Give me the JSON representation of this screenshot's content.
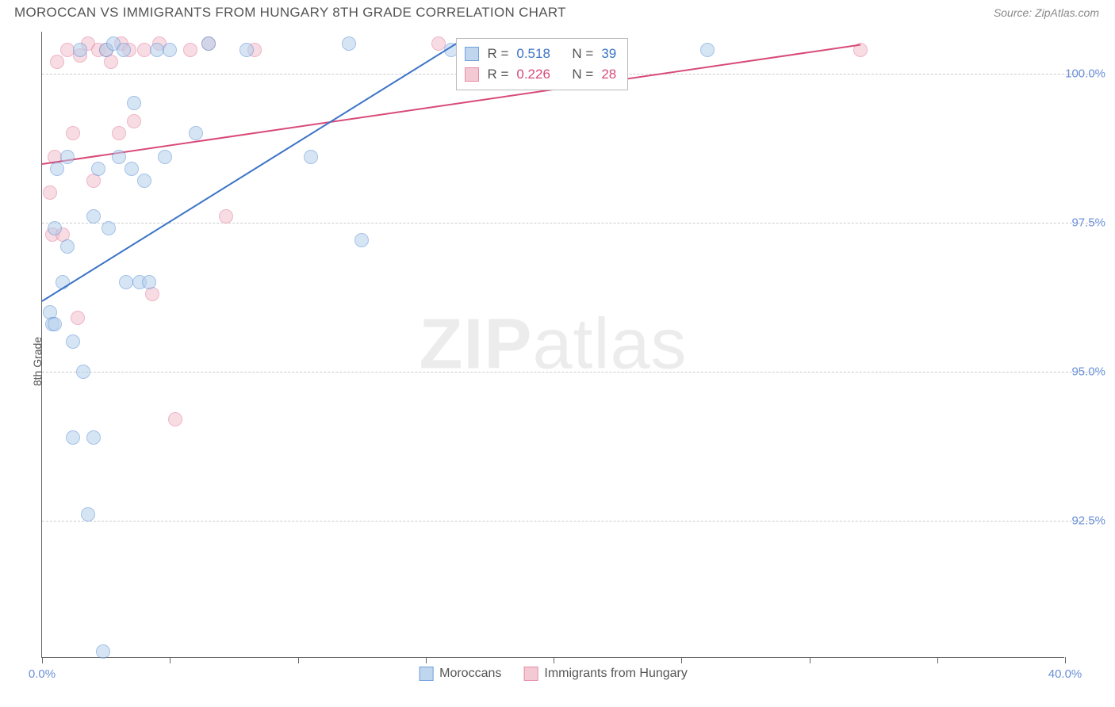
{
  "header": {
    "title": "MOROCCAN VS IMMIGRANTS FROM HUNGARY 8TH GRADE CORRELATION CHART",
    "source": "Source: ZipAtlas.com"
  },
  "axes": {
    "y_label": "8th Grade",
    "x_min": 0.0,
    "x_max": 40.0,
    "y_min": 90.2,
    "y_max": 100.7,
    "y_ticks": [
      92.5,
      95.0,
      97.5,
      100.0
    ],
    "y_tick_labels": [
      "92.5%",
      "95.0%",
      "97.5%",
      "100.0%"
    ],
    "x_ticks": [
      0.0,
      10.0,
      20.0,
      30.0,
      40.0
    ],
    "x_tick_minor": [
      5.0,
      15.0,
      25.0,
      35.0
    ],
    "x_tick_labels": {
      "0.0": "0.0%",
      "40.0": "40.0%"
    }
  },
  "watermark": {
    "part1": "ZIP",
    "part2": "atlas"
  },
  "series": {
    "moroccans": {
      "label": "Moroccans",
      "fill": "#b5d0ec",
      "stroke": "#5a8fd6",
      "fill_opacity": 0.55,
      "marker_radius": 9,
      "r_value": "0.518",
      "n_value": "39",
      "trend_color": "#3c74c6",
      "trend": {
        "x1": 0.0,
        "y1": 96.2,
        "x2": 16.5,
        "y2": 100.6
      },
      "points": [
        [
          0.3,
          96.0
        ],
        [
          0.4,
          95.8
        ],
        [
          0.5,
          97.4
        ],
        [
          0.5,
          95.8
        ],
        [
          0.6,
          98.4
        ],
        [
          0.8,
          96.5
        ],
        [
          1.0,
          97.1
        ],
        [
          1.0,
          98.6
        ],
        [
          1.2,
          93.9
        ],
        [
          1.2,
          95.5
        ],
        [
          1.5,
          100.4
        ],
        [
          1.6,
          95.0
        ],
        [
          1.8,
          92.6
        ],
        [
          2.0,
          97.6
        ],
        [
          2.0,
          93.9
        ],
        [
          2.2,
          98.4
        ],
        [
          2.4,
          90.3
        ],
        [
          2.5,
          100.4
        ],
        [
          2.6,
          97.4
        ],
        [
          2.8,
          100.5
        ],
        [
          3.0,
          98.6
        ],
        [
          3.2,
          100.4
        ],
        [
          3.3,
          96.5
        ],
        [
          3.5,
          98.4
        ],
        [
          3.6,
          99.5
        ],
        [
          3.8,
          96.5
        ],
        [
          4.0,
          98.2
        ],
        [
          4.2,
          96.5
        ],
        [
          4.5,
          100.4
        ],
        [
          4.8,
          98.6
        ],
        [
          5.0,
          100.4
        ],
        [
          6.0,
          99.0
        ],
        [
          6.5,
          100.5
        ],
        [
          8.0,
          100.4
        ],
        [
          10.5,
          98.6
        ],
        [
          12.0,
          100.5
        ],
        [
          12.5,
          97.2
        ],
        [
          16.0,
          100.4
        ],
        [
          26.0,
          100.4
        ]
      ]
    },
    "hungary": {
      "label": "Immigrants from Hungary",
      "fill": "#f2c0cd",
      "stroke": "#e27a9a",
      "fill_opacity": 0.55,
      "marker_radius": 9,
      "r_value": "0.226",
      "n_value": "28",
      "trend_color": "#d84a77",
      "trend": {
        "x1": 0.0,
        "y1": 98.5,
        "x2": 32.0,
        "y2": 100.5
      },
      "points": [
        [
          0.3,
          98.0
        ],
        [
          0.4,
          97.3
        ],
        [
          0.5,
          98.6
        ],
        [
          0.6,
          100.2
        ],
        [
          0.8,
          97.3
        ],
        [
          1.0,
          100.4
        ],
        [
          1.2,
          99.0
        ],
        [
          1.4,
          95.9
        ],
        [
          1.5,
          100.3
        ],
        [
          1.8,
          100.5
        ],
        [
          2.0,
          98.2
        ],
        [
          2.2,
          100.4
        ],
        [
          2.5,
          100.4
        ],
        [
          2.7,
          100.2
        ],
        [
          3.0,
          99.0
        ],
        [
          3.1,
          100.5
        ],
        [
          3.4,
          100.4
        ],
        [
          3.6,
          99.2
        ],
        [
          4.0,
          100.4
        ],
        [
          4.3,
          96.3
        ],
        [
          4.6,
          100.5
        ],
        [
          5.2,
          94.2
        ],
        [
          5.8,
          100.4
        ],
        [
          6.5,
          100.5
        ],
        [
          7.2,
          97.6
        ],
        [
          8.3,
          100.4
        ],
        [
          15.5,
          100.5
        ],
        [
          32.0,
          100.4
        ]
      ]
    }
  },
  "stats_labels": {
    "r_prefix": "R",
    "n_prefix": "N",
    "eq": "="
  },
  "legend_order": [
    "moroccans",
    "hungary"
  ],
  "grid_color": "#cccccc",
  "background_color": "#ffffff"
}
